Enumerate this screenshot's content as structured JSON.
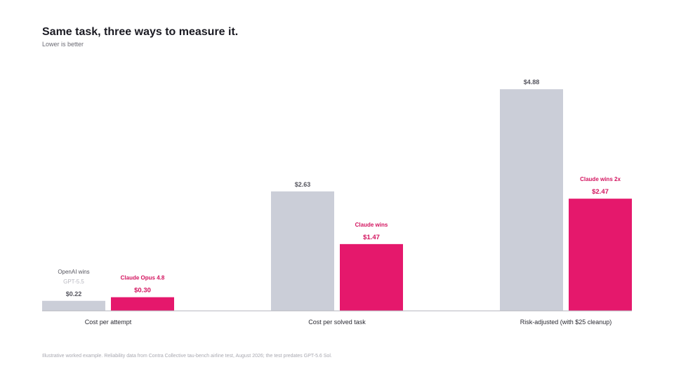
{
  "header": {
    "title": "Same task, three ways to measure it.",
    "subtitle": "Lower is better"
  },
  "footnote": "Illustrative worked example. Reliability data from Contra Collective tau-bench airline test, August 2026; the test predates GPT-5.6 Sol.",
  "chart_data": {
    "type": "bar",
    "categories": [
      "Cost per attempt",
      "Cost per solved task",
      "Risk-adjusted (with $25 cleanup)"
    ],
    "series": [
      {
        "name": "GPT-5.5",
        "color": "#cbced8",
        "values": [
          0.22,
          2.63,
          4.88
        ],
        "value_labels": [
          "$0.22",
          "$2.63",
          "$4.88"
        ]
      },
      {
        "name": "Claude Opus 4.8",
        "color": "#e5186c",
        "values": [
          0.3,
          1.47,
          2.47
        ],
        "value_labels": [
          "$0.30",
          "$1.47",
          "$2.47"
        ]
      }
    ],
    "annotations": [
      {
        "category": 0,
        "series": 0,
        "lines": [
          "OpenAI wins",
          "GPT-5.5"
        ]
      },
      {
        "category": 0,
        "series": 1,
        "lines": [
          "Claude Opus 4.8"
        ]
      },
      {
        "category": 1,
        "series": 1,
        "lines": [
          "Claude wins"
        ]
      },
      {
        "category": 2,
        "series": 1,
        "lines": [
          "Claude wins 2x"
        ]
      }
    ],
    "ylim": [
      0,
      5.3
    ],
    "grid": false,
    "legend": "none"
  }
}
